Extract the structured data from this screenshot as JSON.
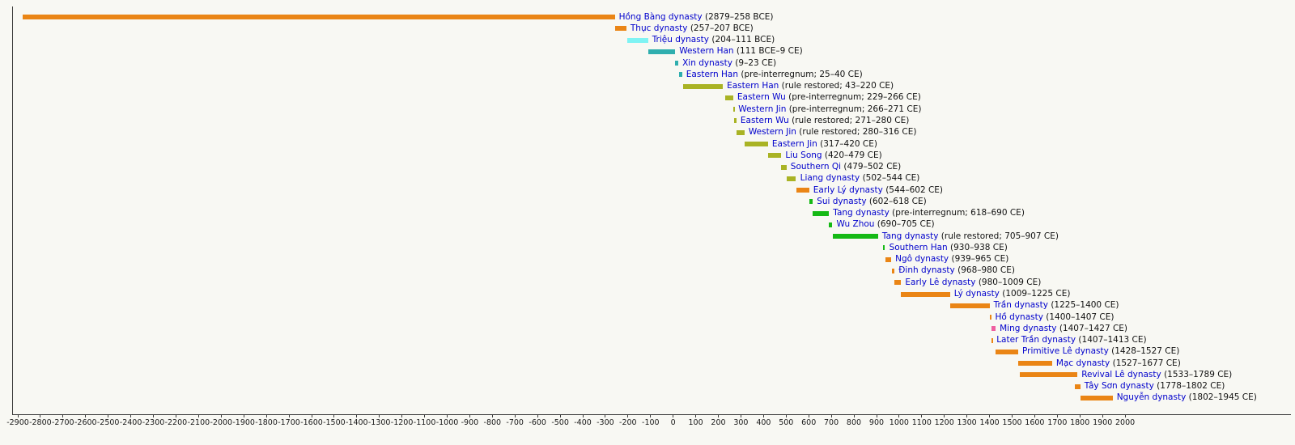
{
  "chart_data": {
    "type": "bar",
    "subtype": "horizontal-timeline",
    "title": "",
    "legend": null,
    "axis": {
      "min": -2900,
      "max": 2000,
      "step": 100,
      "unit": "year"
    },
    "colors": {
      "vietnamese": "#EA8515",
      "trieu": "#7FF3F3",
      "han": "#2FAEAE",
      "jin_era": "#A9B324",
      "tang_era": "#15B915",
      "ming": "#EF5FA0",
      "axis_line": "#3a3a3a",
      "link_blue": "#0000cc",
      "background": "#f8f8f3"
    },
    "bars": [
      {
        "name": "Hồng Bàng dynasty",
        "dates": "(2879–258 BCE)",
        "start": -2879,
        "end": -258,
        "color": "vietnamese"
      },
      {
        "name": "Thục dynasty",
        "dates": "(257–207 BCE)",
        "start": -257,
        "end": -207,
        "color": "vietnamese"
      },
      {
        "name": "Triệu dynasty",
        "dates": "(204–111 BCE)",
        "start": -204,
        "end": -111,
        "color": "trieu"
      },
      {
        "name": "Western Han",
        "dates": "(111 BCE–9 CE)",
        "start": -111,
        "end": 9,
        "color": "han"
      },
      {
        "name": "Xin dynasty",
        "dates": "(9–23 CE)",
        "start": 9,
        "end": 23,
        "color": "han"
      },
      {
        "name": "Eastern Han",
        "dates": "(pre-interregnum; 25–40 CE)",
        "start": 25,
        "end": 40,
        "color": "han"
      },
      {
        "name": "Eastern Han",
        "dates": "(rule restored; 43–220 CE)",
        "start": 43,
        "end": 220,
        "color": "jin_era"
      },
      {
        "name": "Eastern Wu",
        "dates": "(pre-interregnum; 229–266 CE)",
        "start": 229,
        "end": 266,
        "color": "jin_era"
      },
      {
        "name": "Western Jin",
        "dates": "(pre-interregnum; 266–271 CE)",
        "start": 266,
        "end": 271,
        "color": "jin_era"
      },
      {
        "name": "Eastern Wu",
        "dates": "(rule restored; 271–280 CE)",
        "start": 271,
        "end": 280,
        "color": "jin_era"
      },
      {
        "name": "Western Jin",
        "dates": "(rule restored; 280–316 CE)",
        "start": 280,
        "end": 316,
        "color": "jin_era"
      },
      {
        "name": "Eastern Jin",
        "dates": "(317–420 CE)",
        "start": 317,
        "end": 420,
        "color": "jin_era"
      },
      {
        "name": "Liu Song",
        "dates": "(420–479 CE)",
        "start": 420,
        "end": 479,
        "color": "jin_era"
      },
      {
        "name": "Southern Qi",
        "dates": "(479–502 CE)",
        "start": 479,
        "end": 502,
        "color": "jin_era"
      },
      {
        "name": "Liang dynasty",
        "dates": "(502–544 CE)",
        "start": 502,
        "end": 544,
        "color": "jin_era"
      },
      {
        "name": "Early Lý dynasty",
        "dates": "(544–602 CE)",
        "start": 544,
        "end": 602,
        "color": "vietnamese"
      },
      {
        "name": "Sui dynasty",
        "dates": "(602–618 CE)",
        "start": 602,
        "end": 618,
        "color": "tang_era"
      },
      {
        "name": "Tang dynasty",
        "dates": "(pre-interregnum; 618–690 CE)",
        "start": 618,
        "end": 690,
        "color": "tang_era"
      },
      {
        "name": "Wu Zhou",
        "dates": "(690–705 CE)",
        "start": 690,
        "end": 705,
        "color": "tang_era"
      },
      {
        "name": "Tang dynasty",
        "dates": "(rule restored; 705–907 CE)",
        "start": 705,
        "end": 907,
        "color": "tang_era"
      },
      {
        "name": "Southern Han",
        "dates": "(930–938 CE)",
        "start": 930,
        "end": 938,
        "color": "tang_era"
      },
      {
        "name": "Ngô dynasty",
        "dates": "(939–965 CE)",
        "start": 939,
        "end": 965,
        "color": "vietnamese"
      },
      {
        "name": "Đinh dynasty",
        "dates": "(968–980 CE)",
        "start": 968,
        "end": 980,
        "color": "vietnamese"
      },
      {
        "name": "Early Lê dynasty",
        "dates": "(980–1009 CE)",
        "start": 980,
        "end": 1009,
        "color": "vietnamese"
      },
      {
        "name": "Lý dynasty",
        "dates": "(1009–1225 CE)",
        "start": 1009,
        "end": 1225,
        "color": "vietnamese"
      },
      {
        "name": "Trần dynasty",
        "dates": "(1225–1400 CE)",
        "start": 1225,
        "end": 1400,
        "color": "vietnamese"
      },
      {
        "name": "Hồ dynasty",
        "dates": "(1400–1407 CE)",
        "start": 1400,
        "end": 1407,
        "color": "vietnamese"
      },
      {
        "name": "Ming dynasty",
        "dates": "(1407–1427 CE)",
        "start": 1407,
        "end": 1427,
        "color": "ming"
      },
      {
        "name": "Later Trần dynasty",
        "dates": "(1407–1413 CE)",
        "start": 1407,
        "end": 1413,
        "color": "vietnamese"
      },
      {
        "name": "Primitive Lê dynasty",
        "dates": "(1428–1527 CE)",
        "start": 1428,
        "end": 1527,
        "color": "vietnamese"
      },
      {
        "name": "Mạc dynasty",
        "dates": "(1527–1677 CE)",
        "start": 1527,
        "end": 1677,
        "color": "vietnamese"
      },
      {
        "name": "Revival Lê dynasty",
        "dates": "(1533–1789 CE)",
        "start": 1533,
        "end": 1789,
        "color": "vietnamese"
      },
      {
        "name": "Tây Sơn dynasty",
        "dates": "(1778–1802 CE)",
        "start": 1778,
        "end": 1802,
        "color": "vietnamese"
      },
      {
        "name": "Nguyễn dynasty",
        "dates": "(1802–1945 CE)",
        "start": 1802,
        "end": 1945,
        "color": "vietnamese"
      }
    ]
  }
}
